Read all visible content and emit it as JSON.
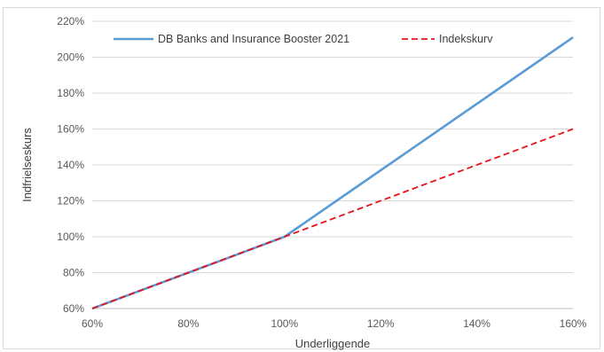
{
  "chart_data": {
    "type": "line",
    "title": "",
    "xlabel": "Underliggende",
    "ylabel": "Indfrielseskurs",
    "xlim": [
      60,
      160
    ],
    "ylim": [
      60,
      220
    ],
    "x_ticks": [
      60,
      80,
      100,
      120,
      140,
      160
    ],
    "y_ticks": [
      60,
      80,
      100,
      120,
      140,
      160,
      180,
      200,
      220
    ],
    "tick_suffix": "%",
    "grid": "horizontal",
    "legend_position": "top",
    "series": [
      {
        "name": "DB Banks and Insurance Booster 2021",
        "color": "#5b9bd5",
        "style": "solid",
        "x": [
          60,
          80,
          100,
          160
        ],
        "y": [
          60,
          80,
          100,
          211
        ]
      },
      {
        "name": "Indekskurv",
        "color": "#e8141b",
        "style": "dashed",
        "x": [
          60,
          80,
          100,
          160
        ],
        "y": [
          60,
          80,
          100,
          160
        ]
      }
    ]
  }
}
